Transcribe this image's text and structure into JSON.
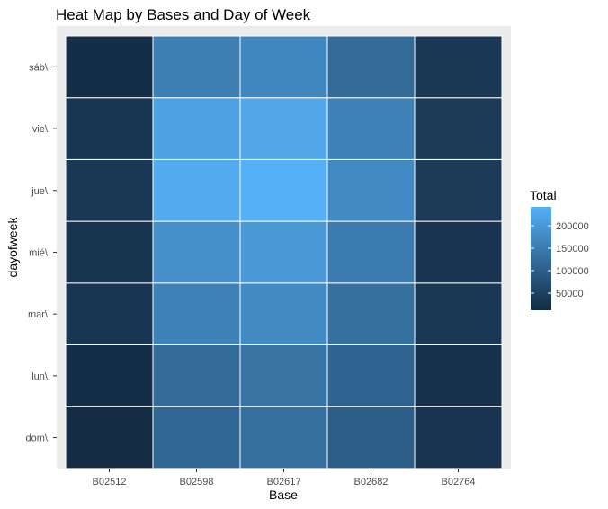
{
  "chart_data": {
    "type": "heatmap",
    "title": "Heat Map by Bases and Day of Week",
    "xlabel": "Base",
    "ylabel": "dayofweek",
    "x": [
      "B02512",
      "B02598",
      "B02617",
      "B02682",
      "B02764"
    ],
    "y": [
      "dom\\.",
      "lun\\.",
      "mar\\.",
      "mié\\.",
      "jue\\.",
      "vie\\.",
      "sáb\\."
    ],
    "values": [
      [
        15000,
        115000,
        130000,
        100000,
        28000
      ],
      [
        17000,
        120000,
        135000,
        110000,
        22000
      ],
      [
        30000,
        160000,
        175000,
        130000,
        35000
      ],
      [
        27000,
        185000,
        200000,
        150000,
        28000
      ],
      [
        35000,
        230000,
        240000,
        175000,
        40000
      ],
      [
        30000,
        215000,
        225000,
        160000,
        40000
      ],
      [
        18000,
        155000,
        170000,
        120000,
        35000
      ]
    ],
    "legend": {
      "title": "Total",
      "placement": "right",
      "range": [
        12000,
        242000
      ],
      "ticks": [
        50000,
        100000,
        150000,
        200000
      ],
      "tick_labels": [
        "50000",
        "100000",
        "150000",
        "200000"
      ],
      "color_low": "#132B43",
      "color_high": "#56B1F7"
    },
    "panel_background": "#EBEBEB",
    "grid": true
  }
}
